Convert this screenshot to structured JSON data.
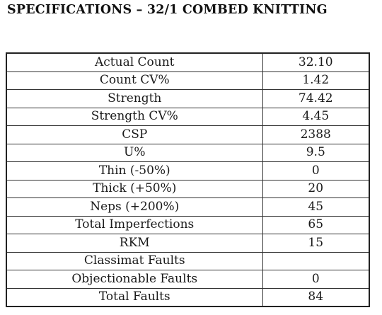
{
  "document": {
    "title": "SPECIFICATIONS – 32/1 COMBED KNITTING"
  },
  "table": {
    "rows": [
      {
        "parameter": "Actual Count",
        "value": "32.10"
      },
      {
        "parameter": "Count CV%",
        "value": "1.42"
      },
      {
        "parameter": "Strength",
        "value": "74.42"
      },
      {
        "parameter": "Strength CV%",
        "value": "4.45"
      },
      {
        "parameter": "CSP",
        "value": "2388"
      },
      {
        "parameter": "U%",
        "value": "9.5"
      },
      {
        "parameter": "Thin (-50%)",
        "value": "0"
      },
      {
        "parameter": "Thick (+50%)",
        "value": "20"
      },
      {
        "parameter": "Neps (+200%)",
        "value": "45"
      },
      {
        "parameter": "Total Imperfections",
        "value": "65"
      },
      {
        "parameter": "RKM",
        "value": "15"
      },
      {
        "parameter": "Classimat Faults",
        "value": ""
      },
      {
        "parameter": "Objectionable Faults",
        "value": "0"
      },
      {
        "parameter": "Total Faults",
        "value": "84"
      }
    ]
  }
}
